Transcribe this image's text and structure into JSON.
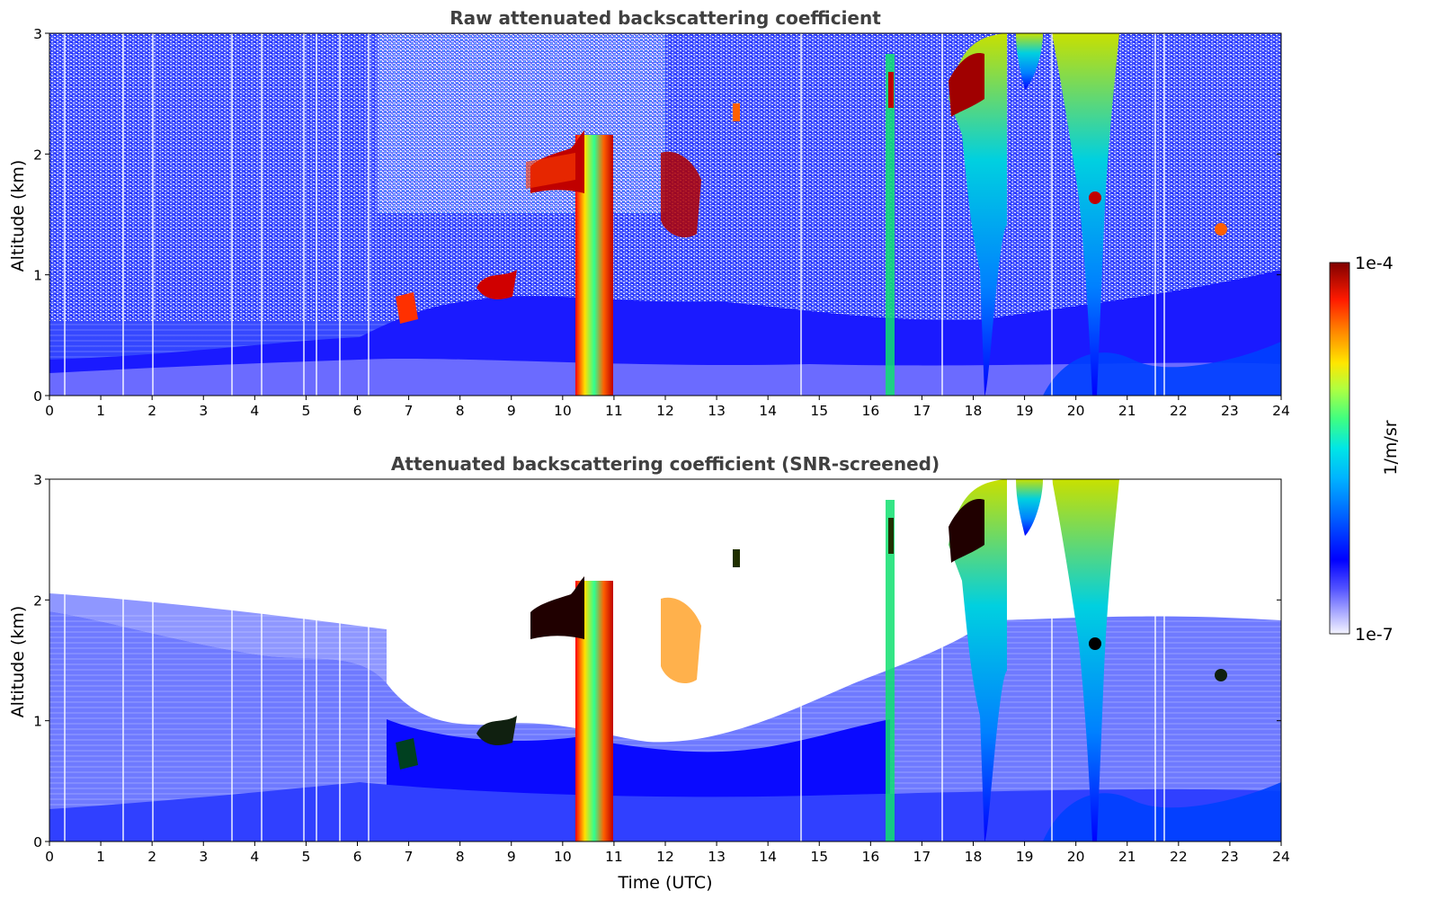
{
  "chart_data": [
    {
      "type": "heatmap",
      "title": "Raw attenuated backscattering coefficient",
      "xlabel": "",
      "ylabel": "Altitude (km)",
      "xlim": [
        0,
        24
      ],
      "ylim": [
        0,
        3
      ],
      "xticks": [
        "0",
        "1",
        "2",
        "3",
        "4",
        "5",
        "6",
        "7",
        "8",
        "9",
        "10",
        "11",
        "12",
        "13",
        "14",
        "15",
        "16",
        "17",
        "18",
        "19",
        "20",
        "21",
        "22",
        "23",
        "24"
      ],
      "yticks": [
        "0",
        "1",
        "2",
        "3"
      ],
      "color_scale": "log jet",
      "value_range": [
        "1e-7",
        "1e-4"
      ],
      "features": [
        {
          "name": "boundary layer",
          "x_range": [
            0,
            24
          ],
          "y_range": [
            0,
            0.6
          ],
          "level": "low"
        },
        {
          "name": "optically thick cloud",
          "x_range": [
            10.2,
            11.0
          ],
          "y_range": [
            0,
            2.2
          ],
          "level": "high"
        },
        {
          "name": "mid-level cloud patch",
          "x_range": [
            9.3,
            10.0
          ],
          "y_range": [
            1.6,
            2.0
          ],
          "level": "high"
        },
        {
          "name": "precipitating clouds",
          "x_range": [
            17.6,
            21.0
          ],
          "y_range": [
            0.2,
            3.0
          ],
          "level": "medium"
        }
      ]
    },
    {
      "type": "heatmap",
      "title": "Attenuated backscattering coefficient (SNR-screened)",
      "xlabel": "Time (UTC)",
      "ylabel": "Altitude (km)",
      "xlim": [
        0,
        24
      ],
      "ylim": [
        0,
        3
      ],
      "xticks": [
        "0",
        "1",
        "2",
        "3",
        "4",
        "5",
        "6",
        "7",
        "8",
        "9",
        "10",
        "11",
        "12",
        "13",
        "14",
        "15",
        "16",
        "17",
        "18",
        "19",
        "20",
        "21",
        "22",
        "23",
        "24"
      ],
      "yticks": [
        "0",
        "1",
        "2",
        "3"
      ],
      "color_scale": "log jet",
      "value_range": [
        "1e-7",
        "1e-4"
      ],
      "features": [
        {
          "name": "boundary layer",
          "x_range": [
            0,
            24
          ],
          "y_range": [
            0,
            1.5
          ],
          "level": "low"
        },
        {
          "name": "optically thick cloud",
          "x_range": [
            10.2,
            11.0
          ],
          "y_range": [
            0,
            2.2
          ],
          "level": "high"
        },
        {
          "name": "precipitating clouds",
          "x_range": [
            17.6,
            21.0
          ],
          "y_range": [
            0.2,
            3.0
          ],
          "level": "medium"
        }
      ]
    }
  ],
  "colorbar": {
    "label": "1/m/sr",
    "max_label": "1e-4",
    "min_label": "1e-7",
    "colors": [
      "#eeeeff",
      "#b4b4ff",
      "#6060ff",
      "#0000ff",
      "#0050ff",
      "#00a0ff",
      "#00e0f0",
      "#30ff90",
      "#b0ff40",
      "#ffe000",
      "#ff8000",
      "#ff2000",
      "#c00000",
      "#800000"
    ]
  }
}
